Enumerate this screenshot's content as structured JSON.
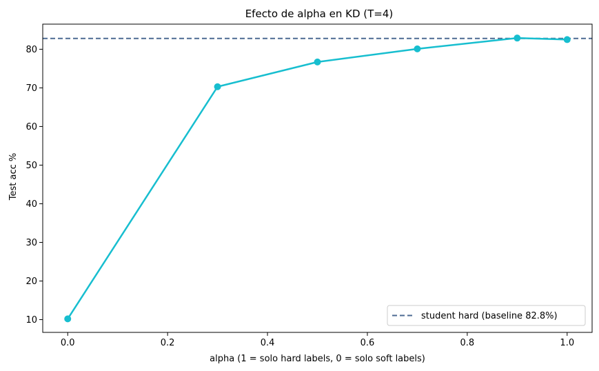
{
  "chart_data": {
    "type": "line",
    "title": "Efecto de alpha en KD (T=4)",
    "xlabel": "alpha (1 = solo hard labels, 0 = solo soft labels)",
    "ylabel": "Test acc %",
    "xlim": [
      -0.05,
      1.05
    ],
    "ylim": [
      6.7,
      86.5
    ],
    "xticks": [
      0.0,
      0.2,
      0.4,
      0.6,
      0.8,
      1.0
    ],
    "xtick_labels": [
      "0.0",
      "0.2",
      "0.4",
      "0.6",
      "0.8",
      "1.0"
    ],
    "yticks": [
      10,
      20,
      30,
      40,
      50,
      60,
      70,
      80
    ],
    "ytick_labels": [
      "10",
      "20",
      "30",
      "40",
      "50",
      "60",
      "70",
      "80"
    ],
    "grid": false,
    "legend_position": "lower-right",
    "series": [
      {
        "x": [
          0.0,
          0.3,
          0.5,
          0.7,
          0.9,
          1.0
        ],
        "y": [
          10.2,
          70.3,
          76.7,
          80.1,
          82.9,
          82.5
        ],
        "color": "#17becf",
        "marker": "circle"
      }
    ],
    "reference_lines": [
      {
        "name": "student hard (baseline 82.8%)",
        "y": 82.8,
        "style": "dashed",
        "color": "#4c6a92"
      }
    ]
  }
}
